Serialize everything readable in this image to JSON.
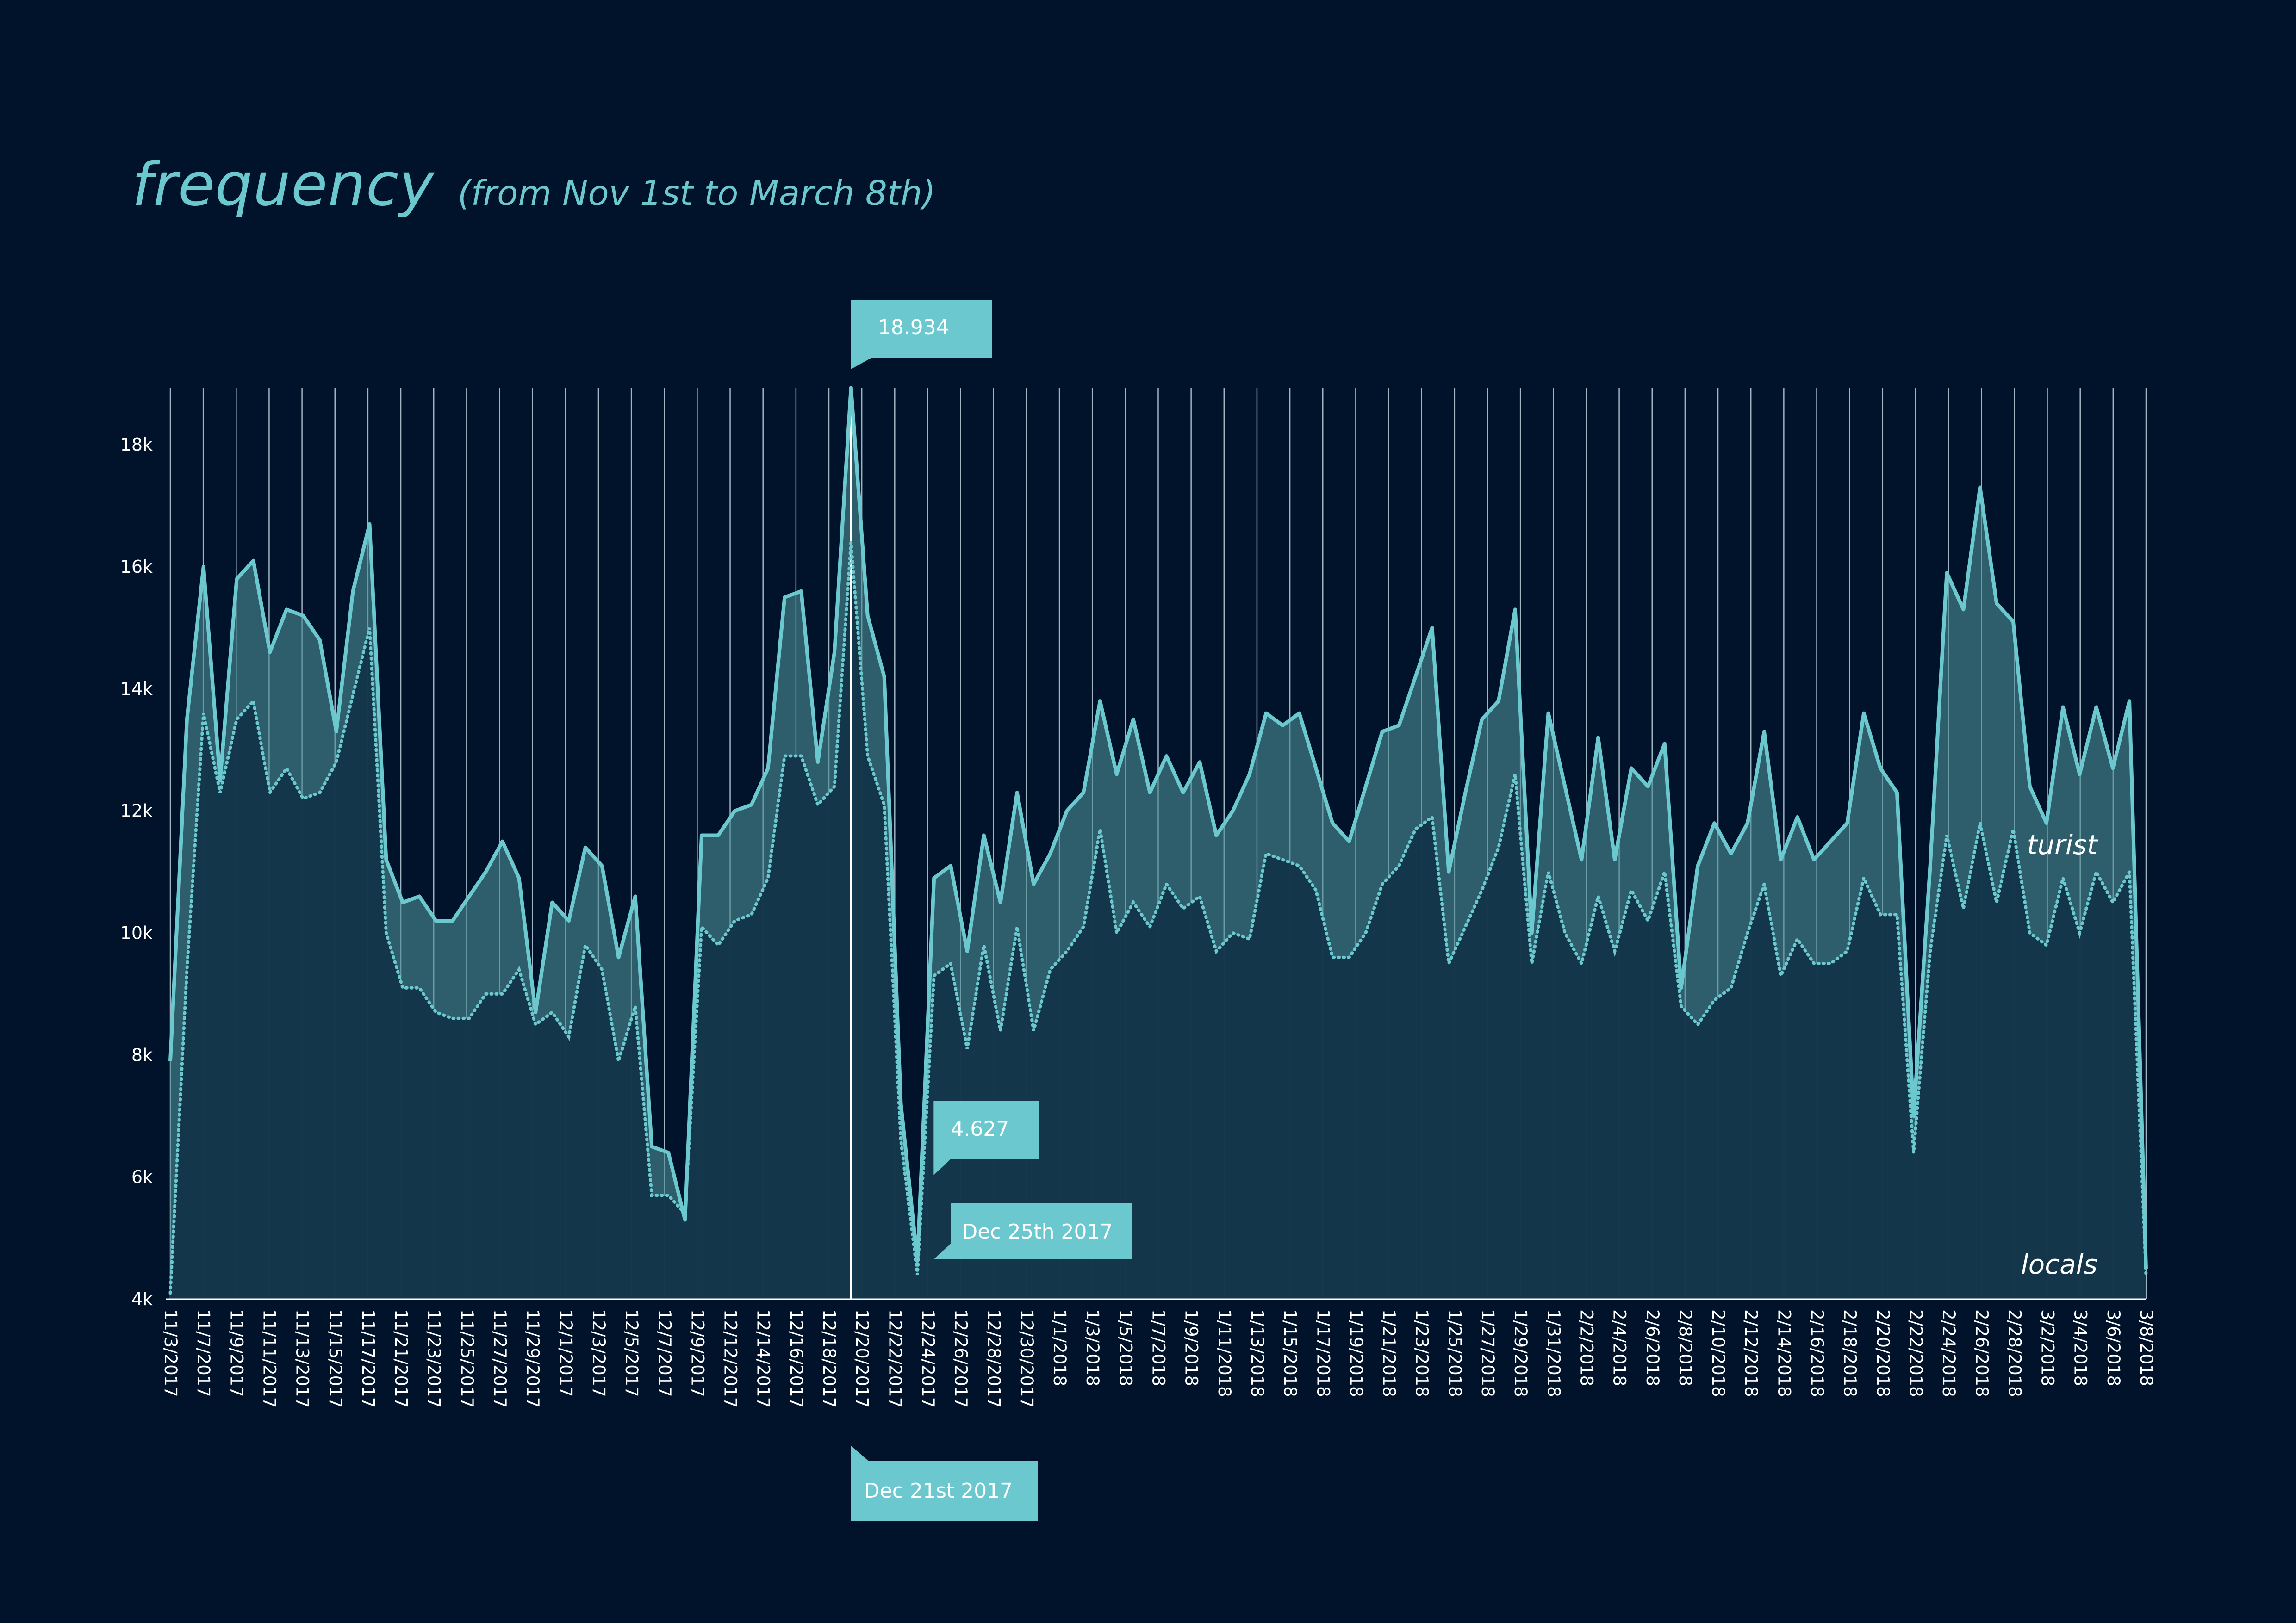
{
  "title": "frequency",
  "subtitle": "(from Nov 1st to March 8th)",
  "chart_data": {
    "type": "area",
    "x_tick_labels": [
      "11/3/2017",
      "11/7/2017",
      "11/9/2017",
      "11/11/2017",
      "11/13/2017",
      "11/15/2017",
      "11/17/2017",
      "11/21/2017",
      "11/23/2017",
      "11/25/2017",
      "11/27/2017",
      "11/29/2017",
      "12/1/2017",
      "12/3/2017",
      "12/5/2017",
      "12/7/2017",
      "12/9/2017",
      "12/12/2017",
      "12/14/2017",
      "12/16/2017",
      "12/18/2017",
      "12/20/2017",
      "12/22/2017",
      "12/24/2017",
      "12/26/2017",
      "12/28/2017",
      "12/30/2017",
      "1/1/2018",
      "1/3/2018",
      "1/5/2018",
      "1/7/2018",
      "1/9/2018",
      "1/11/2018",
      "1/13/2018",
      "1/15/2018",
      "1/17/2018",
      "1/19/2018",
      "1/21/2018",
      "1/23/2018",
      "1/25/2018",
      "1/27/2018",
      "1/29/2018",
      "1/31/2018",
      "2/2/2018",
      "2/4/2018",
      "2/6/2018",
      "2/8/2018",
      "2/10/2018",
      "2/12/2018",
      "2/14/2018",
      "2/16/2018",
      "2/18/2018",
      "2/20/2018",
      "2/22/2018",
      "2/24/2018",
      "2/26/2018",
      "2/28/2018",
      "3/2/2018",
      "3/4/2018",
      "3/6/2018",
      "3/8/2018"
    ],
    "y_ticks": [
      "4k",
      "6k",
      "8k",
      "10k",
      "12k",
      "14k",
      "16k",
      "18k"
    ],
    "ylim": [
      4000,
      18934
    ],
    "series": [
      {
        "name": "turist",
        "style": "solid",
        "values": [
          7900,
          13500,
          16000,
          12500,
          15800,
          16100,
          14600,
          15300,
          15200,
          14800,
          13300,
          15600,
          16700,
          11200,
          10500,
          10600,
          10200,
          10200,
          10600,
          11000,
          11500,
          10900,
          8700,
          10500,
          10200,
          11400,
          11100,
          9600,
          10600,
          6500,
          6400,
          5300,
          11600,
          11600,
          12000,
          12100,
          12700,
          15500,
          15600,
          12800,
          14600,
          18934,
          15200,
          14200,
          7200,
          4627,
          10900,
          11100,
          9700,
          11600,
          10500,
          12300,
          10800,
          11300,
          12000,
          12300,
          13800,
          12600,
          13500,
          12300,
          12900,
          12300,
          12800,
          11600,
          12000,
          12600,
          13600,
          13400,
          13600,
          12700,
          11800,
          11500,
          12400,
          13300,
          13400,
          14200,
          15000,
          11000,
          12300,
          13500,
          13800,
          15300,
          10000,
          13600,
          12400,
          11200,
          13200,
          11200,
          12700,
          12400,
          13100,
          9100,
          11100,
          11800,
          11300,
          11800,
          13300,
          11200,
          11900,
          11200,
          11500,
          11800,
          13600,
          12700,
          12300,
          7000,
          11100,
          15900,
          15300,
          17300,
          15400,
          15100,
          12400,
          11800,
          13700,
          12600,
          13700,
          12700,
          13800,
          4500
        ]
      },
      {
        "name": "locals",
        "style": "dotted",
        "values": [
          4100,
          9400,
          13600,
          12300,
          13500,
          13800,
          12300,
          12700,
          12200,
          12300,
          12800,
          13900,
          15000,
          10000,
          9100,
          9100,
          8700,
          8600,
          8600,
          9000,
          9000,
          9400,
          8500,
          8700,
          8300,
          9800,
          9400,
          7900,
          8800,
          5700,
          5700,
          5400,
          10100,
          9800,
          10200,
          10300,
          10900,
          12900,
          12900,
          12100,
          12400,
          16400,
          12900,
          12100,
          6600,
          4400,
          9300,
          9500,
          8100,
          9800,
          8400,
          10100,
          8400,
          9400,
          9700,
          10100,
          11700,
          10000,
          10500,
          10100,
          10800,
          10400,
          10600,
          9700,
          10000,
          9900,
          11300,
          11200,
          11100,
          10700,
          9600,
          9600,
          10000,
          10800,
          11100,
          11700,
          11900,
          9500,
          10100,
          10700,
          11400,
          12600,
          9500,
          11000,
          10000,
          9500,
          10600,
          9700,
          10700,
          10200,
          11000,
          8800,
          8500,
          8900,
          9100,
          10000,
          10800,
          9300,
          9900,
          9500,
          9500,
          9700,
          10900,
          10300,
          10300,
          6400,
          9700,
          11600,
          10400,
          11800,
          10500,
          11700,
          10000,
          9800,
          10900,
          10000,
          11000,
          10500,
          11000,
          4400
        ]
      }
    ],
    "annotations": [
      {
        "label": "18.934",
        "date": "Dec 21st 2017"
      },
      {
        "label": "4.627",
        "date": "Dec 25th 2017"
      }
    ],
    "grid": true
  }
}
